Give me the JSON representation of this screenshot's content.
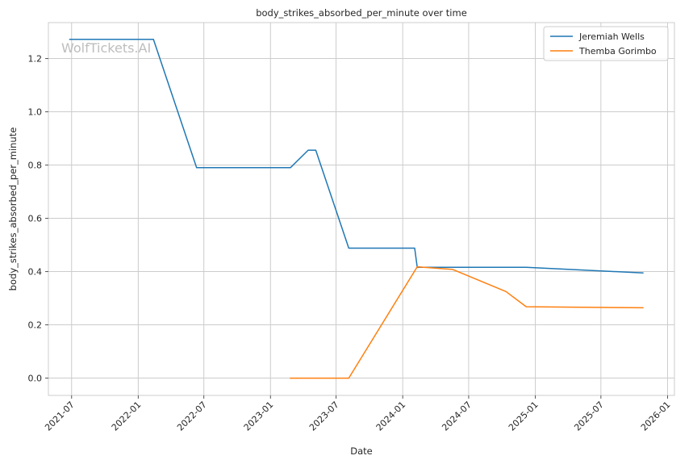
{
  "chart_data": {
    "type": "line",
    "title": "body_strikes_absorbed_per_minute over time",
    "xlabel": "Date",
    "ylabel": "body_strikes_absorbed_per_minute",
    "watermark": "WolfTickets.AI",
    "x_axis_type": "date",
    "xlim": [
      "2021-04-28",
      "2026-01-20"
    ],
    "ylim": [
      -0.065,
      1.335
    ],
    "x_ticks": [
      "2021-07-01",
      "2022-01-01",
      "2022-07-01",
      "2023-01-01",
      "2023-07-01",
      "2024-01-01",
      "2024-07-01",
      "2025-01-01",
      "2025-07-01",
      "2026-01-01"
    ],
    "x_tick_labels": [
      "2021-07",
      "2022-01",
      "2022-07",
      "2023-01",
      "2023-07",
      "2024-01",
      "2024-07",
      "2025-01",
      "2025-07",
      "2026-01"
    ],
    "y_ticks": [
      0.0,
      0.2,
      0.4,
      0.6,
      0.8,
      1.0,
      1.2
    ],
    "y_tick_labels": [
      "0.0",
      "0.2",
      "0.4",
      "0.6",
      "0.8",
      "1.0",
      "1.2"
    ],
    "grid": true,
    "legend_position": "top-right",
    "series": [
      {
        "name": "Jeremiah Wells",
        "color": "#1f77b4",
        "points": [
          {
            "x": "2021-06-26",
            "y": 1.272
          },
          {
            "x": "2022-02-12",
            "y": 1.272
          },
          {
            "x": "2022-06-11",
            "y": 0.79
          },
          {
            "x": "2023-02-25",
            "y": 0.79
          },
          {
            "x": "2023-04-15",
            "y": 0.856
          },
          {
            "x": "2023-05-06",
            "y": 0.856
          },
          {
            "x": "2023-08-05",
            "y": 0.488
          },
          {
            "x": "2024-02-03",
            "y": 0.488
          },
          {
            "x": "2024-02-10",
            "y": 0.416
          },
          {
            "x": "2024-12-07",
            "y": 0.416
          },
          {
            "x": "2025-10-25",
            "y": 0.395
          }
        ]
      },
      {
        "name": "Themba Gorimbo",
        "color": "#ff7f0e",
        "points": [
          {
            "x": "2023-02-25",
            "y": 0.0
          },
          {
            "x": "2023-08-05",
            "y": 0.0
          },
          {
            "x": "2024-02-10",
            "y": 0.418
          },
          {
            "x": "2024-05-18",
            "y": 0.408
          },
          {
            "x": "2024-10-12",
            "y": 0.325
          },
          {
            "x": "2024-12-07",
            "y": 0.268
          },
          {
            "x": "2025-10-25",
            "y": 0.264
          }
        ]
      }
    ]
  }
}
